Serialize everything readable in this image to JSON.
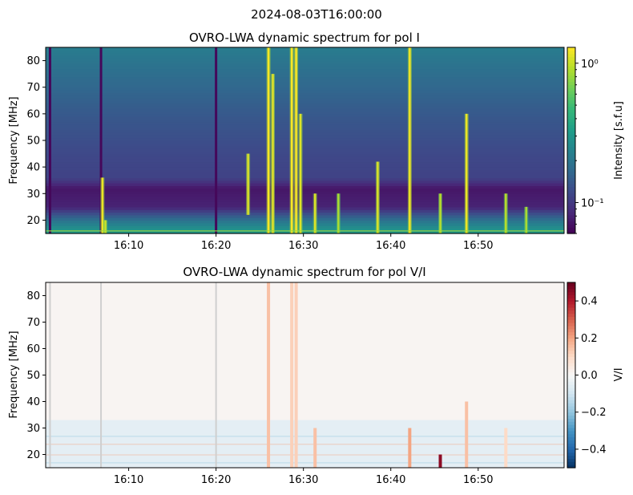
{
  "suptitle": "2024-08-03T16:00:00",
  "colors": {
    "viridis": [
      "#440154",
      "#482878",
      "#3e4989",
      "#31688e",
      "#26828e",
      "#1f9e89",
      "#35b779",
      "#6ece58",
      "#b5de2b",
      "#fde725"
    ],
    "rdbu_r": [
      "#053061",
      "#2166ac",
      "#4393c3",
      "#92c5de",
      "#d1e5f0",
      "#f7f7f7",
      "#fddbc7",
      "#f4a582",
      "#d6604d",
      "#b2182b",
      "#67001f"
    ]
  },
  "chart_data": [
    {
      "type": "heatmap",
      "title": "OVRO-LWA dynamic spectrum for pol I",
      "xlabel": "",
      "ylabel": "Frequency [MHz]",
      "x_range": [
        "16:00:30",
        "16:59:50"
      ],
      "x_ticks": [
        "16:10",
        "16:20",
        "16:30",
        "16:40",
        "16:50"
      ],
      "y_range": [
        15,
        85
      ],
      "y_ticks": [
        20,
        30,
        40,
        50,
        60,
        70,
        80
      ],
      "colorbar": {
        "label": "Intensity [s.f.u]",
        "scale": "log",
        "range": [
          0.06,
          1.3
        ],
        "tick_labels": [
          "10⁰",
          "10⁻¹"
        ],
        "tick_values": [
          1,
          0.1
        ]
      },
      "background_profile": [
        {
          "freq": 15,
          "level": 0.55
        },
        {
          "freq": 17,
          "level": 0.5
        },
        {
          "freq": 20,
          "level": 0.38
        },
        {
          "freq": 25,
          "level": 0.1
        },
        {
          "freq": 32,
          "level": 0.06
        },
        {
          "freq": 36,
          "level": 0.2
        },
        {
          "freq": 45,
          "level": 0.22
        },
        {
          "freq": 60,
          "level": 0.28
        },
        {
          "freq": 75,
          "level": 0.36
        },
        {
          "freq": 85,
          "level": 0.42
        }
      ],
      "bursts": [
        {
          "time": "16:07:00",
          "f_low": 15,
          "f_high": 36,
          "strength": 0.9
        },
        {
          "time": "16:07:20",
          "f_low": 15,
          "f_high": 20,
          "strength": 0.7
        },
        {
          "time": "16:23:40",
          "f_low": 22,
          "f_high": 45,
          "strength": 0.8
        },
        {
          "time": "16:26:00",
          "f_low": 15,
          "f_high": 85,
          "strength": 1.0
        },
        {
          "time": "16:26:30",
          "f_low": 15,
          "f_high": 75,
          "strength": 0.85
        },
        {
          "time": "16:28:40",
          "f_low": 15,
          "f_high": 85,
          "strength": 1.0
        },
        {
          "time": "16:29:10",
          "f_low": 15,
          "f_high": 85,
          "strength": 1.0
        },
        {
          "time": "16:29:40",
          "f_low": 15,
          "f_high": 60,
          "strength": 0.8
        },
        {
          "time": "16:31:20",
          "f_low": 15,
          "f_high": 30,
          "strength": 0.8
        },
        {
          "time": "16:34:00",
          "f_low": 15,
          "f_high": 30,
          "strength": 0.5
        },
        {
          "time": "16:38:30",
          "f_low": 15,
          "f_high": 42,
          "strength": 0.8
        },
        {
          "time": "16:42:10",
          "f_low": 15,
          "f_high": 85,
          "strength": 0.95
        },
        {
          "time": "16:45:40",
          "f_low": 15,
          "f_high": 30,
          "strength": 0.6
        },
        {
          "time": "16:48:40",
          "f_low": 15,
          "f_high": 60,
          "strength": 0.9
        },
        {
          "time": "16:53:10",
          "f_low": 15,
          "f_high": 30,
          "strength": 0.6
        },
        {
          "time": "16:55:30",
          "f_low": 15,
          "f_high": 25,
          "strength": 0.5
        }
      ],
      "dropouts": [
        "16:01:00",
        "16:06:50",
        "16:20:00"
      ]
    },
    {
      "type": "heatmap",
      "title": "OVRO-LWA dynamic spectrum for pol V/I",
      "xlabel": "",
      "ylabel": "Frequency [MHz]",
      "x_range": [
        "16:00:30",
        "16:59:50"
      ],
      "x_ticks": [
        "16:10",
        "16:20",
        "16:30",
        "16:40",
        "16:50"
      ],
      "y_range": [
        15,
        85
      ],
      "y_ticks": [
        20,
        30,
        40,
        50,
        60,
        70,
        80
      ],
      "colorbar": {
        "label": "V/I",
        "scale": "linear",
        "range": [
          -0.5,
          0.5
        ],
        "tick_labels": [
          "0.4",
          "0.2",
          "0.0",
          "−0.2",
          "−0.4"
        ],
        "tick_values": [
          0.4,
          0.2,
          0.0,
          -0.2,
          -0.4
        ]
      },
      "bursts": [
        {
          "time": "16:26:00",
          "f_low": 15,
          "f_high": 85,
          "value": 0.15
        },
        {
          "time": "16:28:40",
          "f_low": 15,
          "f_high": 85,
          "value": 0.12
        },
        {
          "time": "16:29:10",
          "f_low": 15,
          "f_high": 85,
          "value": 0.12
        },
        {
          "time": "16:31:20",
          "f_low": 15,
          "f_high": 30,
          "value": 0.15
        },
        {
          "time": "16:42:10",
          "f_low": 15,
          "f_high": 30,
          "value": 0.2
        },
        {
          "time": "16:45:40",
          "f_low": 15,
          "f_high": 20,
          "value": 0.45
        },
        {
          "time": "16:48:40",
          "f_low": 15,
          "f_high": 40,
          "value": 0.15
        },
        {
          "time": "16:53:10",
          "f_low": 15,
          "f_high": 30,
          "value": 0.1
        }
      ]
    }
  ]
}
